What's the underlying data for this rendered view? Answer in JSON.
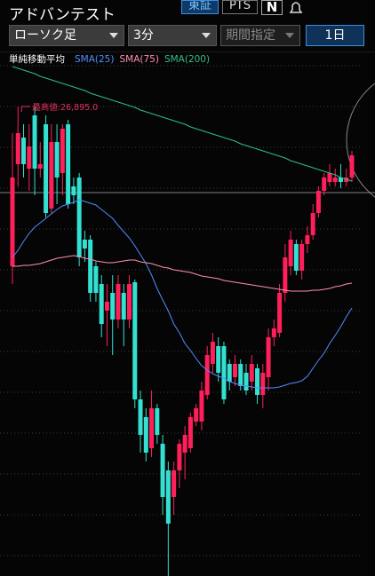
{
  "header": {
    "title": "アドバンテスト",
    "exchange_tabs": [
      "東証",
      "PTS"
    ],
    "news_icon": "N",
    "chart_type": "ローソク足",
    "interval": "3分",
    "period": "期間指定",
    "range": "1日"
  },
  "chart_data": {
    "type": "candlestick",
    "legend_title": "単純移動平均",
    "annotation": "最高値:26,895.0",
    "ylim": [
      26366,
      26955
    ],
    "up_color": "#ff1f5a",
    "down_color": "#33e0d2",
    "candles": {
      "open": [
        26715,
        26830,
        26860,
        26825,
        26885,
        26825,
        26875,
        26780,
        26855,
        26820,
        26875,
        26805,
        26815,
        26745,
        26745,
        26715,
        26695,
        26665,
        26685,
        26655,
        26685,
        26655,
        26697,
        26565,
        26545,
        26510,
        26555,
        26515,
        26485,
        26455,
        26485,
        26505,
        26510,
        26540,
        26540,
        26570,
        26605,
        26625,
        26625,
        26605,
        26590,
        26605,
        26595,
        26585,
        26600,
        26570,
        26590,
        26635,
        26640,
        26685,
        26715,
        26740,
        26710,
        26740,
        26750,
        26775,
        26800,
        26810,
        26810,
        26815,
        26810,
        26815
      ],
      "high": [
        26865,
        26895,
        26875,
        26875,
        26895,
        26855,
        26885,
        26875,
        26875,
        26875,
        26880,
        26815,
        26820,
        26755,
        26750,
        26720,
        26705,
        26695,
        26705,
        26705,
        26695,
        26705,
        26700,
        26575,
        26555,
        26575,
        26560,
        26525,
        26495,
        26495,
        26520,
        26535,
        26550,
        26560,
        26585,
        26625,
        26640,
        26635,
        26630,
        26610,
        26615,
        26610,
        26605,
        26615,
        26605,
        26605,
        26645,
        26655,
        26695,
        26740,
        26755,
        26745,
        26745,
        26760,
        26785,
        26805,
        26820,
        26830,
        26825,
        26830,
        26825,
        26845
      ],
      "low": [
        26695,
        26805,
        26815,
        26800,
        26795,
        26815,
        26770,
        26775,
        26785,
        26795,
        26780,
        26785,
        26715,
        26720,
        26675,
        26675,
        26635,
        26625,
        26615,
        26645,
        26625,
        26645,
        26555,
        26505,
        26495,
        26500,
        26515,
        26435,
        26366,
        26435,
        26465,
        26475,
        26505,
        26535,
        26530,
        26565,
        26595,
        26585,
        26560,
        26575,
        26580,
        26575,
        26570,
        26575,
        26560,
        26555,
        26575,
        26625,
        26635,
        26675,
        26705,
        26705,
        26700,
        26730,
        26745,
        26770,
        26795,
        26805,
        26805,
        26803,
        26805,
        26810
      ],
      "close": [
        26815,
        26865,
        26830,
        26850,
        26825,
        26830,
        26775,
        26855,
        26815,
        26870,
        26785,
        26795,
        26725,
        26735,
        26685,
        26685,
        26650,
        26675,
        26655,
        26695,
        26655,
        26695,
        26565,
        26525,
        26505,
        26555,
        26525,
        26455,
        26425,
        26485,
        26515,
        26525,
        26545,
        26555,
        26575,
        26615,
        26630,
        26595,
        26565,
        26585,
        26605,
        26580,
        26575,
        26605,
        26570,
        26595,
        26635,
        26645,
        26685,
        26725,
        26745,
        26710,
        26740,
        26750,
        26775,
        26800,
        26815,
        26820,
        26815,
        26810,
        26815,
        26840
      ]
    },
    "series": [
      {
        "name": "SMA(25)",
        "color": "#4f8dff",
        "values": [
          26725,
          26733,
          26743,
          26752,
          26759,
          26764,
          26769,
          26774,
          26779,
          26783,
          26785,
          26787,
          26790,
          26788,
          26786,
          26784,
          26779,
          26774,
          26769,
          26761,
          26754,
          26747,
          26738,
          26728,
          26718,
          26705,
          26690,
          26677,
          26665,
          26650,
          26640,
          26628,
          26620,
          26611,
          26603,
          26598,
          26594,
          26591,
          26589,
          26585,
          26583,
          26581,
          26580,
          26579,
          26578,
          26578,
          26578,
          26578,
          26579,
          26581,
          26583,
          26584,
          26586,
          26591,
          26600,
          26609,
          26617,
          26628,
          26637,
          26647,
          26658,
          26668
        ]
      },
      {
        "name": "SMA(75)",
        "color": "#ff8fb0",
        "values": [
          26715,
          26715,
          26716,
          26716,
          26717,
          26718,
          26720,
          26722,
          26724,
          26725,
          26726,
          26727,
          26726,
          26724,
          26723,
          26721,
          26720,
          26719,
          26719,
          26720,
          26721,
          26722,
          26722,
          26720,
          26719,
          26718,
          26716,
          26714,
          26713,
          26711,
          26710,
          26709,
          26708,
          26706,
          26704,
          26703,
          26702,
          26701,
          26699,
          26698,
          26697,
          26696,
          26695,
          26694,
          26693,
          26692,
          26691,
          26690,
          26689,
          26688,
          26687,
          26687,
          26687,
          26687,
          26688,
          26688,
          26689,
          26690,
          26692,
          26693,
          26695,
          26696
        ]
      },
      {
        "name": "SMA(200)",
        "color": "#2fbf86",
        "values": [
          26940,
          26938,
          26936,
          26934,
          26932,
          26929,
          26927,
          26925,
          26923,
          26921,
          26919,
          26917,
          26915,
          26913,
          26910,
          26908,
          26906,
          26904,
          26902,
          26900,
          26898,
          26896,
          26894,
          26891,
          26889,
          26887,
          26885,
          26883,
          26881,
          26879,
          26877,
          26875,
          26872,
          26870,
          26868,
          26866,
          26864,
          26862,
          26860,
          26858,
          26856,
          26853,
          26851,
          26849,
          26847,
          26845,
          26843,
          26841,
          26839,
          26837,
          26834,
          26832,
          26830,
          26828,
          26826,
          26824,
          26822,
          26820,
          26818,
          26815,
          26813,
          26811
        ]
      }
    ]
  }
}
